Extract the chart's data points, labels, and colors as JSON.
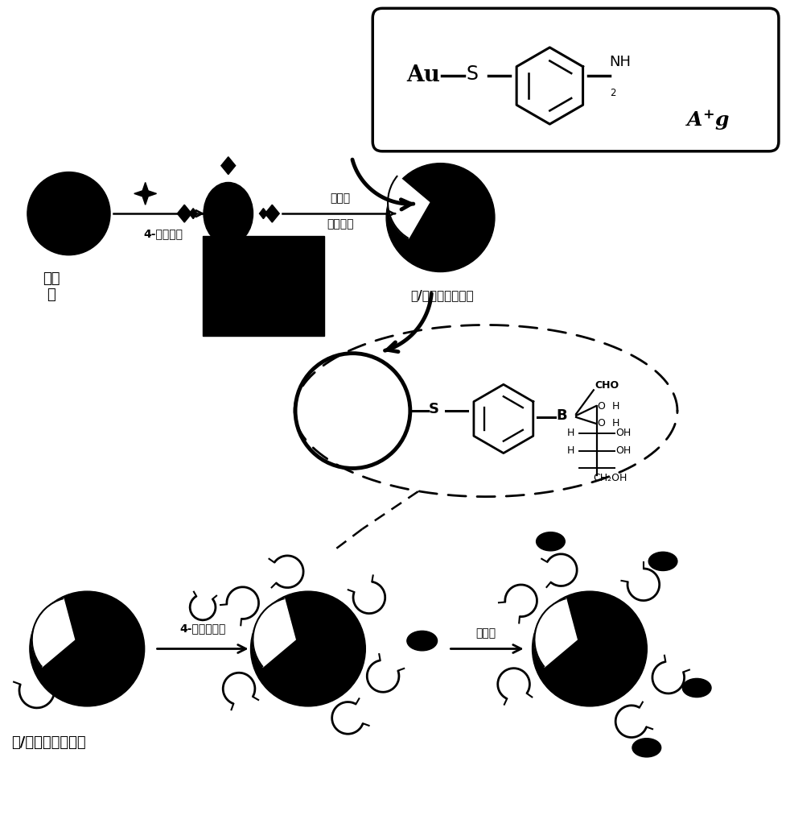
{
  "bg_color": "#ffffff",
  "text_color": "#000000",
  "label_nanogold": "纳米\n金",
  "label_4mba": "4-巯基苯胺",
  "label_reagents_top": "硝酸银",
  "label_reagents_bot": "抗坏血酸",
  "label_core_shell": "金/银纳米核壳结构",
  "label_4mpba": "4-巯基苯硼酸",
  "label_glucose": "葡萄糖",
  "label_core_shell2": "金/银纳米核壳结构"
}
